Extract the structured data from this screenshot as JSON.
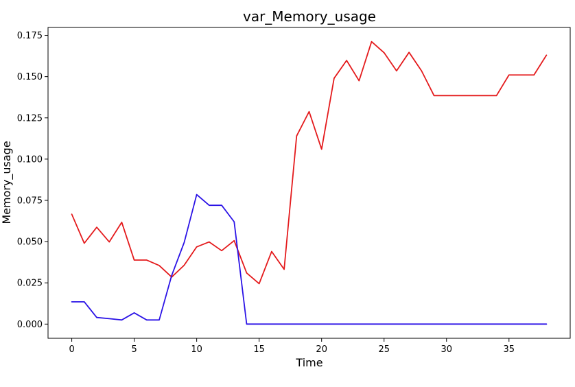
{
  "chart_data": {
    "type": "line",
    "title": "var_Memory_usage",
    "xlabel": "Time",
    "ylabel": "Memory_usage",
    "xlim": [
      -1.9,
      39.9
    ],
    "ylim": [
      -0.0086,
      0.1798
    ],
    "xticks": [
      0,
      5,
      10,
      15,
      20,
      25,
      30,
      35
    ],
    "yticks": [
      0.0,
      0.025,
      0.05,
      0.075,
      0.1,
      0.125,
      0.15,
      0.175
    ],
    "ytick_labels": [
      "0.000",
      "0.025",
      "0.050",
      "0.075",
      "0.100",
      "0.125",
      "0.150",
      "0.175"
    ],
    "grid": false,
    "x": [
      0,
      1,
      2,
      3,
      4,
      5,
      6,
      7,
      8,
      9,
      10,
      11,
      12,
      13,
      14,
      15,
      16,
      17,
      18,
      19,
      20,
      21,
      22,
      23,
      24,
      25,
      26,
      27,
      28,
      29,
      30,
      31,
      32,
      33,
      34,
      35,
      36,
      37,
      38
    ],
    "series": [
      {
        "color": "#e41a1c",
        "values": [
          0.0666,
          0.049,
          0.0587,
          0.0498,
          0.0617,
          0.0388,
          0.0388,
          0.0355,
          0.0285,
          0.0357,
          0.0468,
          0.0498,
          0.0445,
          0.0506,
          0.031,
          0.0245,
          0.044,
          0.0332,
          0.114,
          0.1288,
          0.106,
          0.149,
          0.1598,
          0.1475,
          0.1712,
          0.1645,
          0.1535,
          0.1647,
          0.1535,
          0.1385,
          0.1385,
          0.1385,
          0.1385,
          0.1385,
          0.1385,
          0.151,
          0.151,
          0.151,
          0.163
        ]
      },
      {
        "color": "#2a12e6",
        "values": [
          0.0135,
          0.0135,
          0.004,
          0.0033,
          0.0025,
          0.0068,
          0.0025,
          0.0025,
          0.0295,
          0.0495,
          0.0785,
          0.072,
          0.072,
          0.062,
          0.0,
          0.0,
          0.0,
          0.0,
          0.0,
          0.0,
          0.0,
          0.0,
          0.0,
          0.0,
          0.0,
          0.0,
          0.0,
          0.0,
          0.0,
          0.0,
          0.0,
          0.0,
          0.0,
          0.0,
          0.0,
          0.0,
          0.0,
          0.0,
          0.0
        ]
      }
    ]
  }
}
